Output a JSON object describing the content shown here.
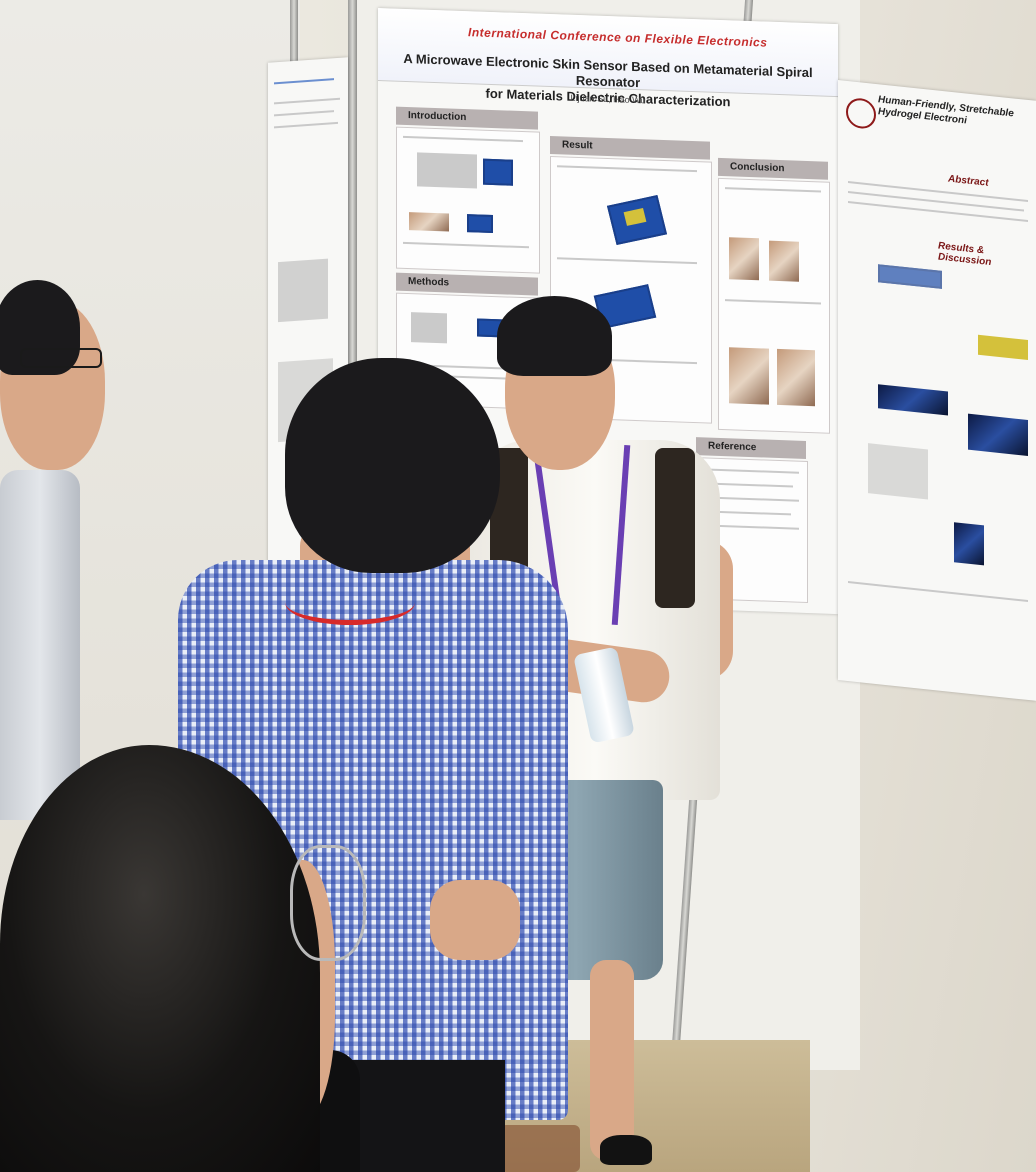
{
  "scene": {
    "description_alt": ""
  },
  "main_poster": {
    "conference": "International Conference on Flexible Electronics",
    "title_line1": "A Microwave Electronic Skin Sensor Based on Metamaterial Spiral Resonator",
    "title_line2": "for Materials Dielectric Characterization",
    "authors": "Lijuan Su, Hao Wu",
    "sections": {
      "introduction": "Introduction",
      "result": "Result",
      "conclusion": "Conclusion",
      "methods": "Methods",
      "reference": "Reference"
    }
  },
  "right_poster": {
    "title_line1": "Human-Friendly, Stretchable",
    "title_line2": "Hydrogel Electroni",
    "abstract": "Abstract",
    "results": "Results & Discussion"
  },
  "colors": {
    "conference_red": "#c62d2d",
    "section_gray": "#b8b1b1",
    "lanyard_purple": "#6a3fb3",
    "lanyard_red": "#d72a2a",
    "shirt_check_blue": "#2240aa"
  }
}
